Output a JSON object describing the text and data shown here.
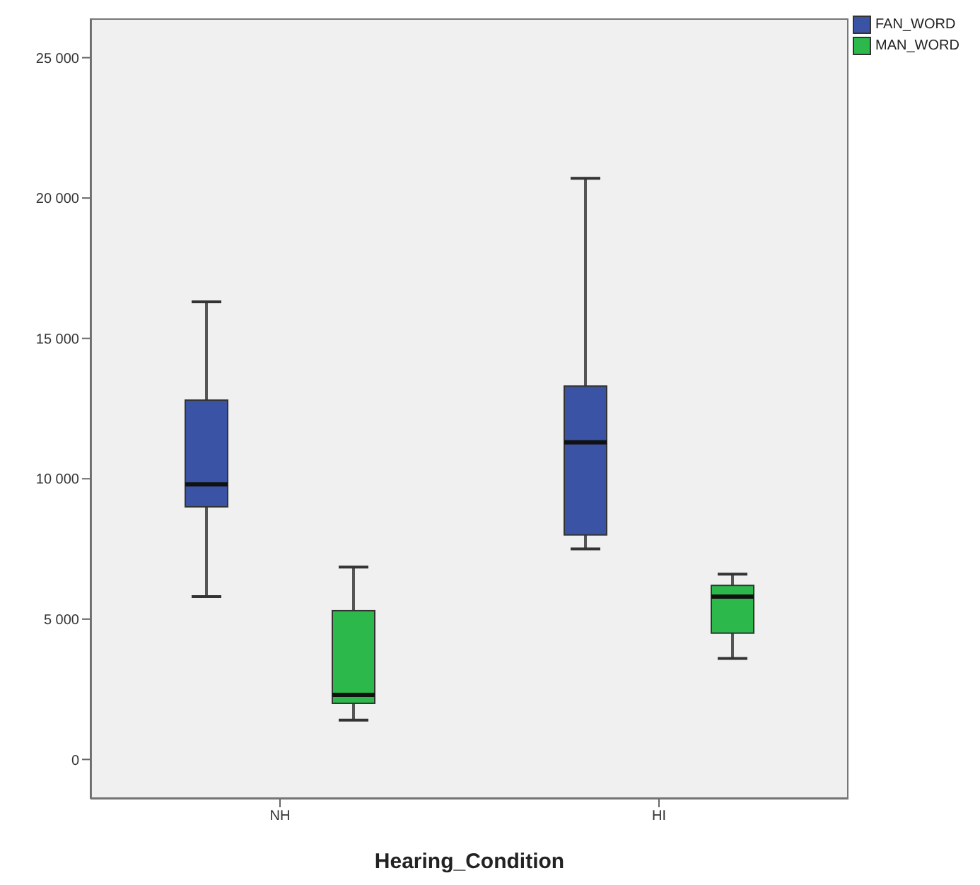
{
  "chart_data": {
    "type": "box",
    "xlabel": "Hearing_Condition",
    "categories": [
      "NH",
      "HI"
    ],
    "series": [
      {
        "name": "FAN_WORD",
        "color": "#3a53a4",
        "boxes": [
          {
            "low": 5800,
            "q1": 9000,
            "median": 9800,
            "q3": 12800,
            "high": 16300
          },
          {
            "low": 7500,
            "q1": 8000,
            "median": 11300,
            "q3": 13300,
            "high": 20700
          }
        ]
      },
      {
        "name": "MAN_WORD",
        "color": "#2db84b",
        "boxes": [
          {
            "low": 1400,
            "q1": 2000,
            "median": 2300,
            "q3": 5300,
            "high": 6850
          },
          {
            "low": 3600,
            "q1": 4500,
            "median": 5800,
            "q3": 6200,
            "high": 6600
          }
        ]
      }
    ],
    "ylim": [
      -1400,
      26400
    ],
    "yticks": [
      {
        "value": 0,
        "label": "0"
      },
      {
        "value": 5000,
        "label": "5 000"
      },
      {
        "value": 10000,
        "label": "10 000"
      },
      {
        "value": 15000,
        "label": "15 000"
      },
      {
        "value": 20000,
        "label": "20 000"
      },
      {
        "value": 25000,
        "label": "25 000"
      }
    ],
    "legend": "top right",
    "grid": false
  }
}
